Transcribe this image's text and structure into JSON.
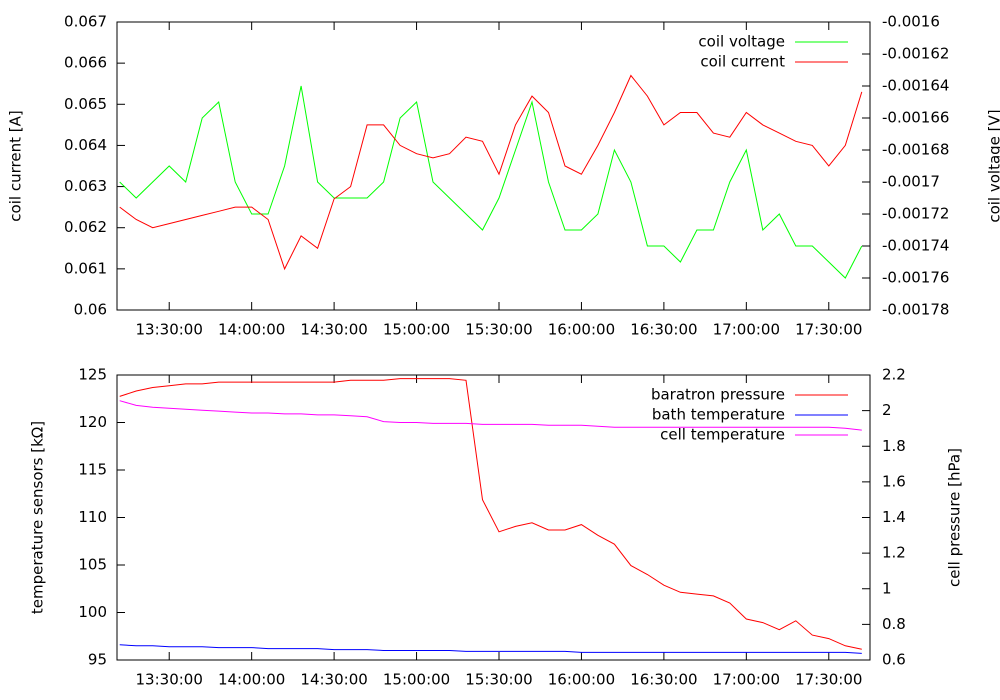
{
  "chart_data": [
    {
      "type": "line",
      "ylabel": "coil current [A]",
      "y2label": "coil voltage [V]",
      "x": [
        "13:12:00",
        "13:18:00",
        "13:24:00",
        "13:30:00",
        "13:36:00",
        "13:42:00",
        "13:48:00",
        "13:54:00",
        "14:00:00",
        "14:06:00",
        "14:12:00",
        "14:18:00",
        "14:24:00",
        "14:30:00",
        "14:36:00",
        "14:42:00",
        "14:48:00",
        "14:54:00",
        "15:00:00",
        "15:06:00",
        "15:12:00",
        "15:18:00",
        "15:24:00",
        "15:30:00",
        "15:36:00",
        "15:42:00",
        "15:48:00",
        "15:54:00",
        "16:00:00",
        "16:06:00",
        "16:12:00",
        "16:18:00",
        "16:24:00",
        "16:30:00",
        "16:36:00",
        "16:42:00",
        "16:48:00",
        "16:54:00",
        "17:00:00",
        "17:06:00",
        "17:12:00",
        "17:18:00",
        "17:24:00",
        "17:30:00",
        "17:36:00",
        "17:42:00"
      ],
      "xlim": [
        "13:11:00",
        "17:45:00"
      ],
      "xticks": [
        "13:30:00",
        "14:00:00",
        "14:30:00",
        "15:00:00",
        "15:30:00",
        "16:00:00",
        "16:30:00",
        "17:00:00",
        "17:30:00"
      ],
      "ylim": [
        0.06,
        0.067
      ],
      "yticks": [
        0.06,
        0.061,
        0.062,
        0.063,
        0.064,
        0.065,
        0.066,
        0.067
      ],
      "y2lim": [
        -0.00178,
        -0.0016
      ],
      "y2ticks": [
        -0.00178,
        -0.00176,
        -0.00174,
        -0.00172,
        -0.0017,
        -0.00168,
        -0.00166,
        -0.00164,
        -0.00162,
        -0.0016
      ],
      "legend": "top-right",
      "series": [
        {
          "name": "coil voltage",
          "color": "#00ff00",
          "axis": "y2",
          "values": [
            -0.0017,
            -0.00171,
            -0.0017,
            -0.00169,
            -0.0017,
            -0.00166,
            -0.00165,
            -0.0017,
            -0.00172,
            -0.00172,
            -0.00169,
            -0.00164,
            -0.0017,
            -0.00171,
            -0.00171,
            -0.00171,
            -0.0017,
            -0.00166,
            -0.00165,
            -0.0017,
            -0.00171,
            -0.00172,
            -0.00173,
            -0.00171,
            -0.00168,
            -0.00165,
            -0.0017,
            -0.00173,
            -0.00173,
            -0.00172,
            -0.00168,
            -0.0017,
            -0.00174,
            -0.00174,
            -0.00175,
            -0.00173,
            -0.00173,
            -0.0017,
            -0.00168,
            -0.00173,
            -0.00172,
            -0.00174,
            -0.00174,
            -0.00175,
            -0.00176,
            -0.00174
          ]
        },
        {
          "name": "coil current",
          "color": "#ff0000",
          "axis": "y",
          "values": [
            0.0625,
            0.0622,
            0.062,
            0.0621,
            0.0622,
            0.0623,
            0.0624,
            0.0625,
            0.0625,
            0.0622,
            0.061,
            0.0618,
            0.0615,
            0.0627,
            0.063,
            0.0645,
            0.0645,
            0.064,
            0.0638,
            0.0637,
            0.0638,
            0.0642,
            0.0641,
            0.0633,
            0.0645,
            0.0652,
            0.0648,
            0.0635,
            0.0633,
            0.064,
            0.0648,
            0.0657,
            0.0652,
            0.0645,
            0.0648,
            0.0648,
            0.0643,
            0.0642,
            0.0648,
            0.0645,
            0.0643,
            0.0641,
            0.064,
            0.0635,
            0.064,
            0.0653
          ]
        }
      ]
    },
    {
      "type": "line",
      "ylabel": "temperature sensors [kΩ]",
      "y2label": "cell pressure [hPa]",
      "x": [
        "13:12:00",
        "13:18:00",
        "13:24:00",
        "13:30:00",
        "13:36:00",
        "13:42:00",
        "13:48:00",
        "13:54:00",
        "14:00:00",
        "14:06:00",
        "14:12:00",
        "14:18:00",
        "14:24:00",
        "14:30:00",
        "14:36:00",
        "14:42:00",
        "14:48:00",
        "14:54:00",
        "15:00:00",
        "15:06:00",
        "15:12:00",
        "15:18:00",
        "15:24:00",
        "15:30:00",
        "15:36:00",
        "15:42:00",
        "15:48:00",
        "15:54:00",
        "16:00:00",
        "16:06:00",
        "16:12:00",
        "16:18:00",
        "16:24:00",
        "16:30:00",
        "16:36:00",
        "16:42:00",
        "16:48:00",
        "16:54:00",
        "17:00:00",
        "17:06:00",
        "17:12:00",
        "17:18:00",
        "17:24:00",
        "17:30:00",
        "17:36:00",
        "17:42:00"
      ],
      "xlim": [
        "13:11:00",
        "17:45:00"
      ],
      "xticks": [
        "13:30:00",
        "14:00:00",
        "14:30:00",
        "15:00:00",
        "15:30:00",
        "16:00:00",
        "16:30:00",
        "17:00:00",
        "17:30:00"
      ],
      "ylim": [
        95,
        125
      ],
      "yticks": [
        95,
        100,
        105,
        110,
        115,
        120,
        125
      ],
      "y2lim": [
        0.6,
        2.2
      ],
      "y2ticks": [
        0.6,
        0.8,
        1,
        1.2,
        1.4,
        1.6,
        1.8,
        2,
        2.2
      ],
      "legend": "top-right",
      "series": [
        {
          "name": "baratron pressure",
          "color": "#ff0000",
          "axis": "y2",
          "values": [
            2.08,
            2.11,
            2.13,
            2.14,
            2.15,
            2.15,
            2.16,
            2.16,
            2.16,
            2.16,
            2.16,
            2.16,
            2.16,
            2.16,
            2.17,
            2.17,
            2.17,
            2.18,
            2.18,
            2.18,
            2.18,
            2.17,
            1.5,
            1.32,
            1.35,
            1.37,
            1.33,
            1.33,
            1.36,
            1.3,
            1.25,
            1.13,
            1.08,
            1.02,
            0.98,
            0.97,
            0.96,
            0.92,
            0.83,
            0.81,
            0.77,
            0.82,
            0.74,
            0.72,
            0.68,
            0.66
          ]
        },
        {
          "name": "bath temperature",
          "color": "#0000ff",
          "axis": "y",
          "values": [
            96.6,
            96.5,
            96.5,
            96.4,
            96.4,
            96.4,
            96.3,
            96.3,
            96.3,
            96.2,
            96.2,
            96.2,
            96.2,
            96.1,
            96.1,
            96.1,
            96.0,
            96.0,
            96.0,
            96.0,
            96.0,
            95.9,
            95.9,
            95.9,
            95.9,
            95.9,
            95.9,
            95.9,
            95.8,
            95.8,
            95.8,
            95.8,
            95.8,
            95.8,
            95.8,
            95.8,
            95.8,
            95.8,
            95.8,
            95.8,
            95.8,
            95.8,
            95.8,
            95.8,
            95.8,
            95.7
          ]
        },
        {
          "name": "cell temperature",
          "color": "#ff00ff",
          "axis": "y",
          "values": [
            122.3,
            121.8,
            121.6,
            121.5,
            121.4,
            121.3,
            121.2,
            121.1,
            121.0,
            121.0,
            120.9,
            120.9,
            120.8,
            120.8,
            120.7,
            120.6,
            120.1,
            120.0,
            120.0,
            119.9,
            119.9,
            119.9,
            119.8,
            119.8,
            119.8,
            119.8,
            119.7,
            119.7,
            119.7,
            119.6,
            119.5,
            119.5,
            119.5,
            119.5,
            119.5,
            119.5,
            119.5,
            119.5,
            119.5,
            119.5,
            119.5,
            119.5,
            119.5,
            119.5,
            119.4,
            119.2
          ]
        }
      ]
    }
  ]
}
